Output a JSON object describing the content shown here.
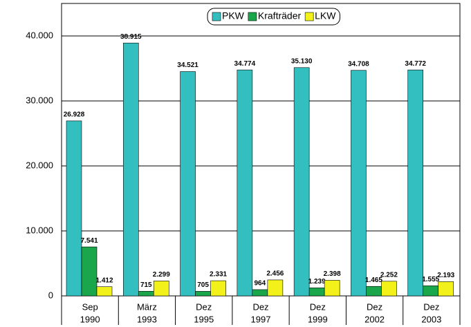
{
  "chart_data": {
    "type": "bar",
    "categories": [
      [
        "Sep",
        "1990"
      ],
      [
        "März",
        "1993"
      ],
      [
        "Dez",
        "1995"
      ],
      [
        "Dez",
        "1997"
      ],
      [
        "Dez",
        "1999"
      ],
      [
        "Dez",
        "2002"
      ],
      [
        "Dez",
        "2003"
      ]
    ],
    "series": [
      {
        "name": "PKW",
        "color": "#33bfbf",
        "values": [
          26928,
          38915,
          34521,
          34774,
          35130,
          34708,
          34772
        ],
        "value_labels": [
          "26.928",
          "38.915",
          "34.521",
          "34.774",
          "35.130",
          "34.708",
          "34.772"
        ]
      },
      {
        "name": "Krafträder",
        "color": "#1aa64a",
        "values": [
          7541,
          715,
          705,
          964,
          1239,
          1465,
          1555
        ],
        "value_labels": [
          "7.541",
          "715",
          "705",
          "964",
          "1.239",
          "1.465",
          "1.555"
        ]
      },
      {
        "name": "LKW",
        "color": "#f2f21a",
        "values": [
          1412,
          2299,
          2331,
          2456,
          2398,
          2252,
          2193
        ],
        "value_labels": [
          "1.412",
          "2.299",
          "2.331",
          "2.456",
          "2.398",
          "2.252",
          "2.193"
        ]
      }
    ],
    "ylim": [
      0,
      45000
    ],
    "yticks": [
      0,
      {
        "value": 10000,
        "label": "10.000"
      },
      {
        "value": 20000,
        "label": "20.000"
      },
      {
        "value": 30000,
        "label": "30.000"
      },
      {
        "value": 40000,
        "label": "40.000"
      }
    ],
    "grid": true,
    "legend": "top-right"
  }
}
